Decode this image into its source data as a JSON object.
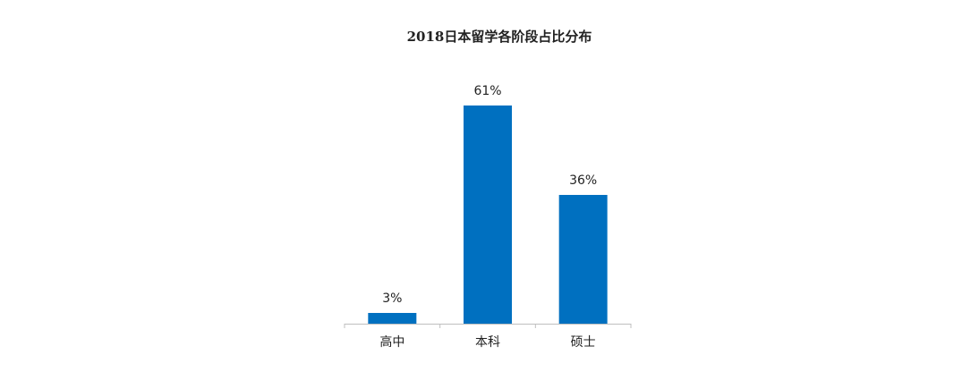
{
  "chart_data": {
    "type": "bar",
    "title": "2018日本留学各阶段占比分布",
    "categories": [
      "高中",
      "本科",
      "硕士"
    ],
    "values": [
      3,
      61,
      36
    ],
    "value_labels": [
      "3%",
      "61%",
      "36%"
    ],
    "color": "#0070c0"
  }
}
